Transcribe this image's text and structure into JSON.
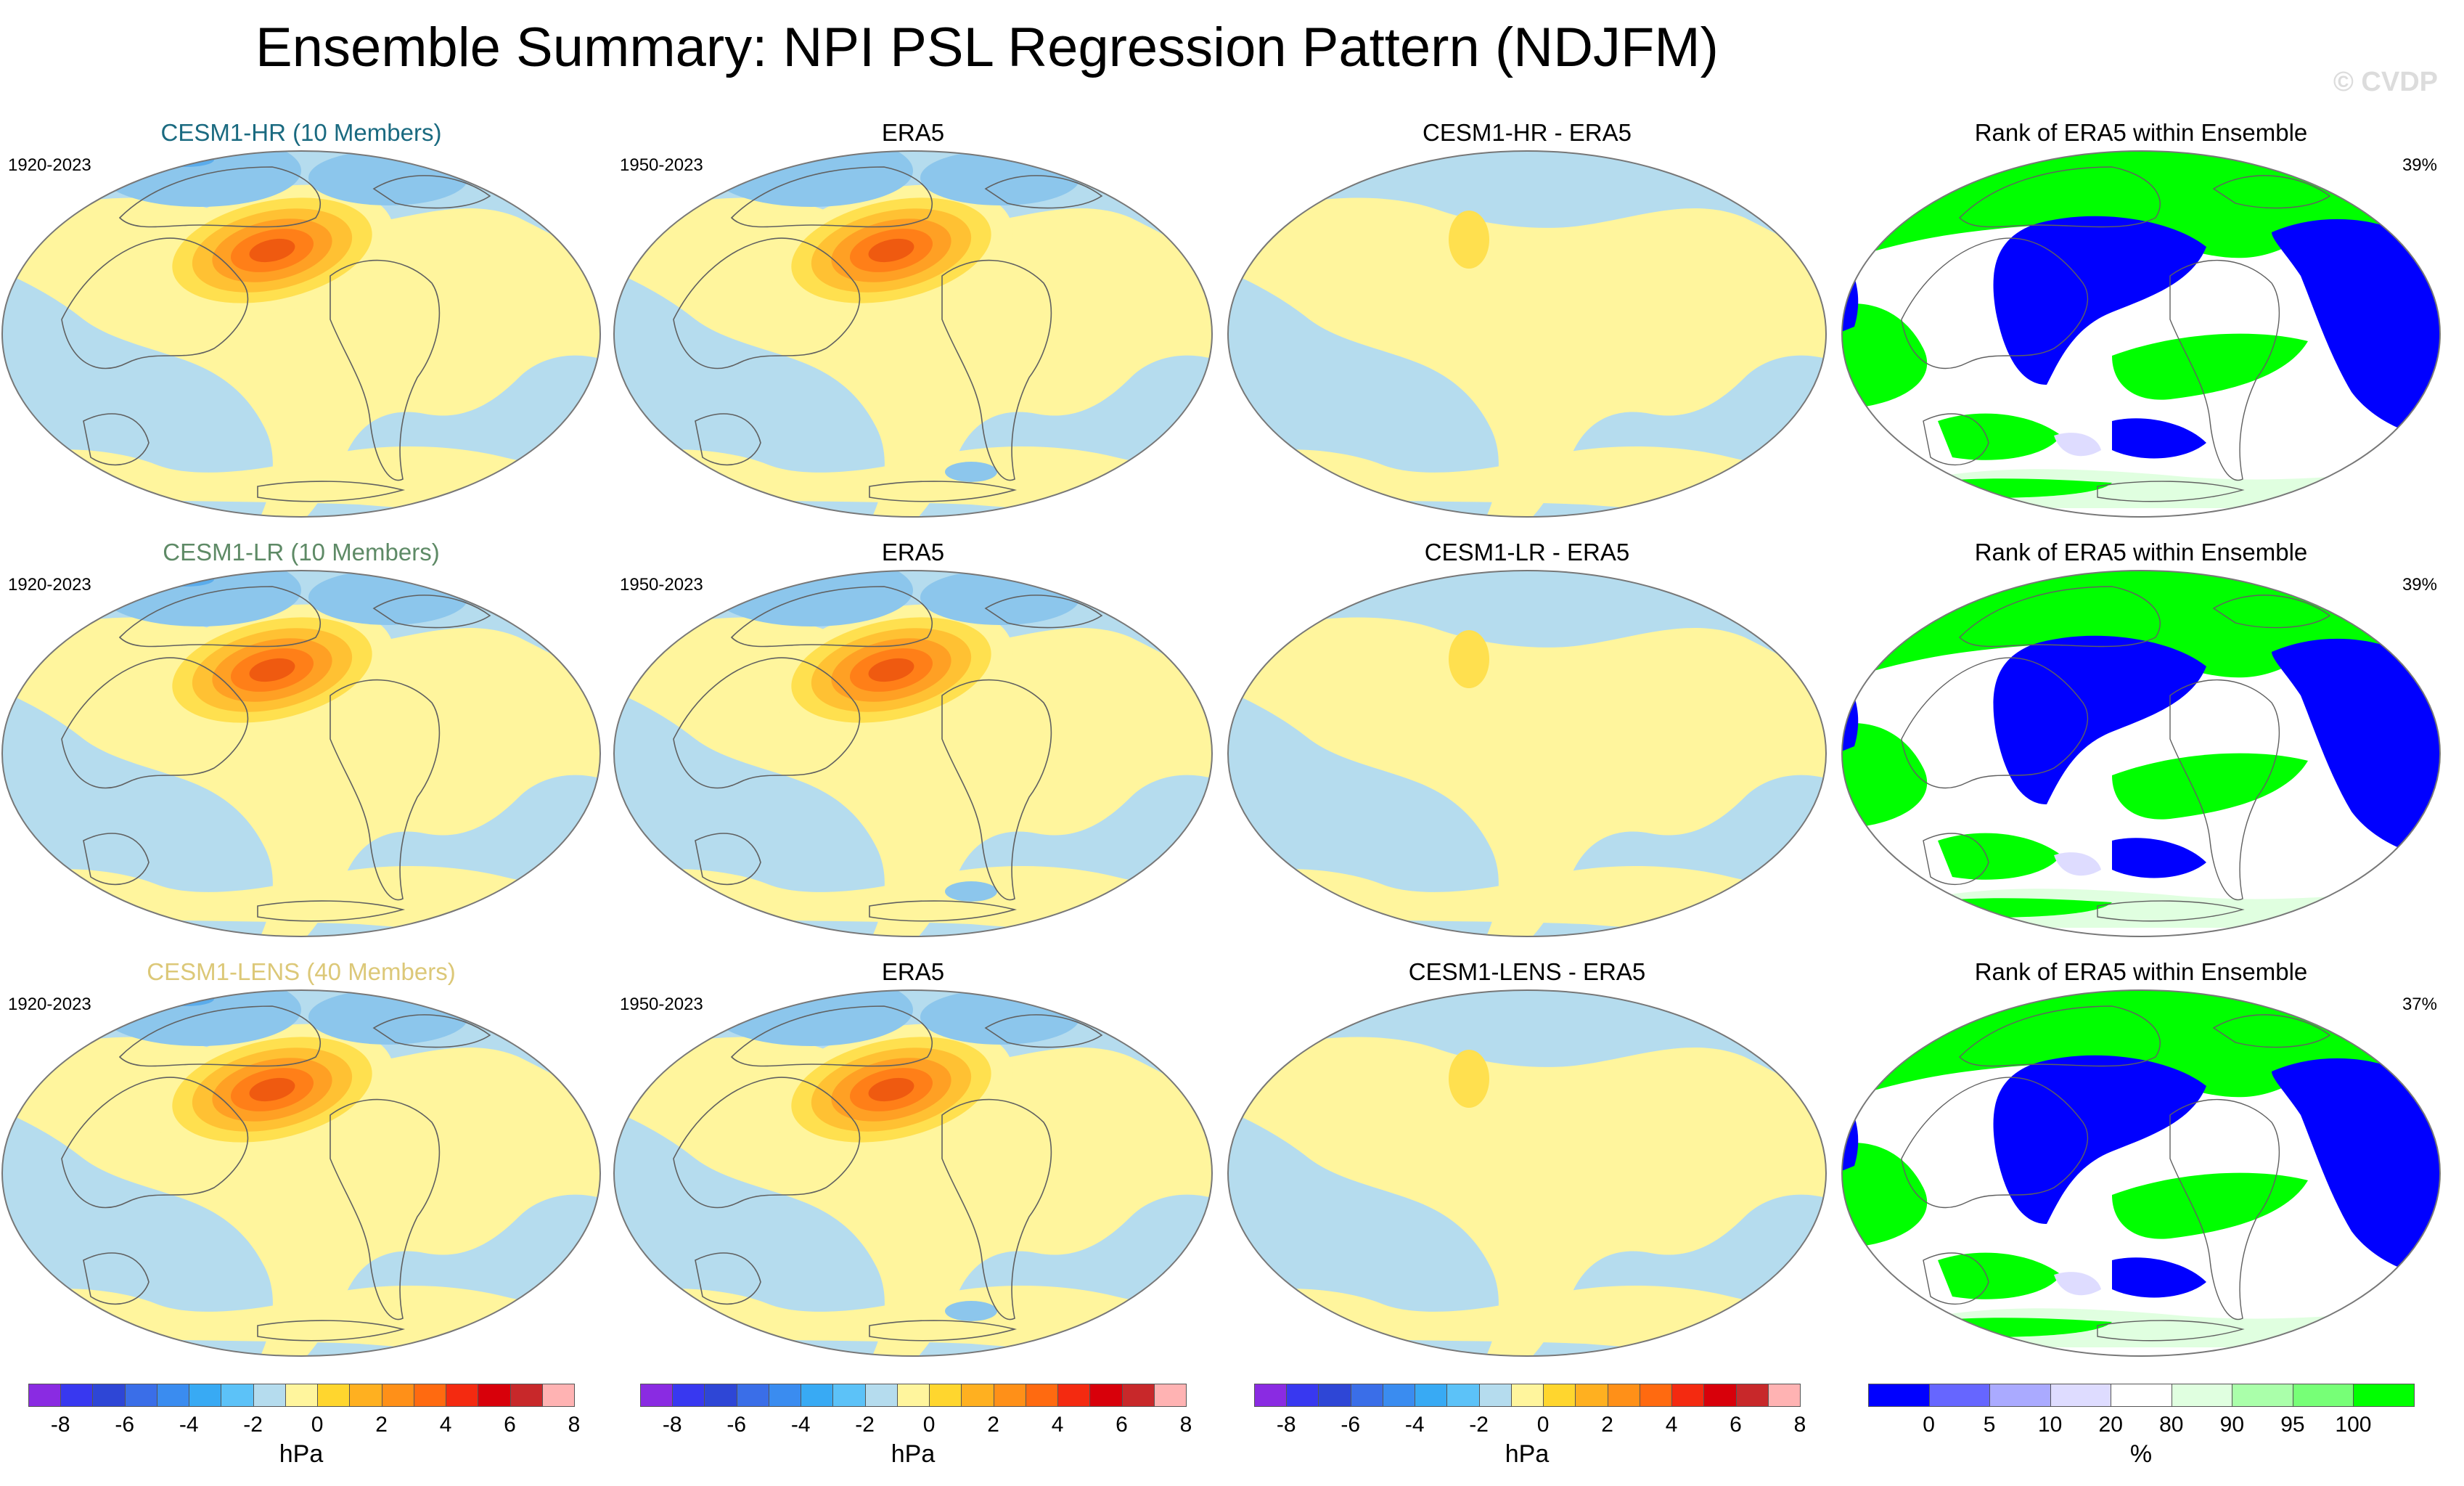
{
  "title": "Ensemble Summary: NPI PSL Regression Pattern (NDJFM)",
  "watermark": "© CVDP",
  "colors": {
    "pos": "#fff59d",
    "neg": "#b5dcee",
    "c2": "#ffe04f",
    "c3": "#ffc133",
    "c4": "#ffa024",
    "c5": "#ff7f18",
    "c6": "#ef5a10",
    "neg2": "#8cc6ec",
    "neg3": "#5aacec",
    "rank_low": "#0000ff",
    "rank_high": "#00ff00",
    "rank_mid": "#ffffff",
    "rank_pale": "#e0ffe0",
    "rank_lav": "#dedcff",
    "coast": "#606060"
  },
  "rows": [
    {
      "model": {
        "title": "CESM1-HR (10 Members)",
        "color": "#1a6a80",
        "period": "1920-2023"
      },
      "obs": {
        "title": "ERA5",
        "period": "1950-2023"
      },
      "diff": {
        "title": "CESM1-HR - ERA5"
      },
      "rank": {
        "title": "Rank of ERA5 within Ensemble",
        "percent": "39%"
      }
    },
    {
      "model": {
        "title": "CESM1-LR (10 Members)",
        "color": "#5e8a66",
        "period": "1920-2023"
      },
      "obs": {
        "title": "ERA5",
        "period": "1950-2023"
      },
      "diff": {
        "title": "CESM1-LR - ERA5"
      },
      "rank": {
        "title": "Rank of ERA5 within Ensemble",
        "percent": "39%"
      }
    },
    {
      "model": {
        "title": "CESM1-LENS (40 Members)",
        "color": "#dcc878",
        "period": "1920-2023"
      },
      "obs": {
        "title": "ERA5",
        "period": "1950-2023"
      },
      "diff": {
        "title": "CESM1-LENS - ERA5"
      },
      "rank": {
        "title": "Rank of ERA5 within Ensemble",
        "percent": "37%"
      }
    }
  ],
  "psl_colorbar": {
    "unit": "hPa",
    "ticks": [
      "-8",
      "-6",
      "-4",
      "-2",
      "0",
      "2",
      "4",
      "6",
      "8"
    ],
    "colors": [
      "#8a2be2",
      "#3838f0",
      "#2e46d6",
      "#3a6ee8",
      "#3a8cf0",
      "#38aaf4",
      "#5cc2f8",
      "#b5dcee",
      "#fff59d",
      "#ffd62e",
      "#ffb020",
      "#ff9018",
      "#ff6a10",
      "#f42a10",
      "#d8000a",
      "#c8282a",
      "#ffb3b3"
    ]
  },
  "rank_colorbar": {
    "unit": "%",
    "ticks": [
      "0",
      "5",
      "10",
      "20",
      "80",
      "90",
      "95",
      "100"
    ],
    "colors": [
      "#0000ff",
      "#6666ff",
      "#aaaaff",
      "#dedcff",
      "#ffffff",
      "#e0ffe0",
      "#aaffaa",
      "#77ff77",
      "#00ff00"
    ]
  }
}
